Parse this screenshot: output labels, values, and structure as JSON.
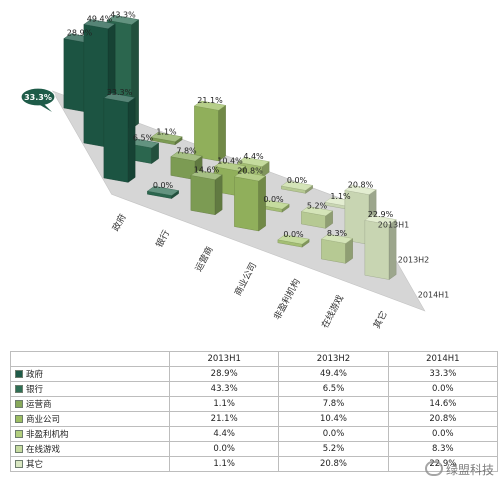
{
  "chart_data": {
    "type": "bar",
    "variant": "3d-column",
    "title": "",
    "categories": [
      "政府",
      "银行",
      "运营商",
      "商业公司",
      "非盈利机构",
      "在线游戏",
      "其它"
    ],
    "series": [
      {
        "name": "2013H1",
        "values": [
          28.9,
          43.3,
          1.1,
          21.1,
          4.4,
          0.0,
          1.1
        ],
        "labels": [
          "28.9%",
          "43.3%",
          "1.1%",
          "21.1%",
          "4.4%",
          "0.0%",
          "1.1%"
        ]
      },
      {
        "name": "2013H2",
        "values": [
          49.4,
          6.5,
          7.8,
          10.4,
          0.0,
          5.2,
          20.8
        ],
        "labels": [
          "49.4%",
          "6.5%",
          "7.8%",
          "10.4%",
          "0.0%",
          "5.2%",
          "20.8%"
        ]
      },
      {
        "name": "2014H1",
        "values": [
          33.3,
          0.0,
          14.6,
          20.8,
          0.0,
          8.3,
          22.9
        ],
        "labels": [
          "33.3%",
          "0.0%",
          "14.6%",
          "20.8%",
          "0.0%",
          "8.3%",
          "22.9%"
        ]
      }
    ],
    "colors": [
      "#1e5b48",
      "#2f6f55",
      "#87a95a",
      "#9dbe63",
      "#b2cf7e",
      "#c6dba0",
      "#d9e7c2"
    ],
    "callout": {
      "text": "33.3%"
    },
    "legend": "table-below",
    "grid": false
  },
  "table": {
    "header": [
      "",
      "2013H1",
      "2013H2",
      "2014H1"
    ]
  },
  "watermark": {
    "text": "绿盟科技",
    "icon": "wechat-icon"
  }
}
